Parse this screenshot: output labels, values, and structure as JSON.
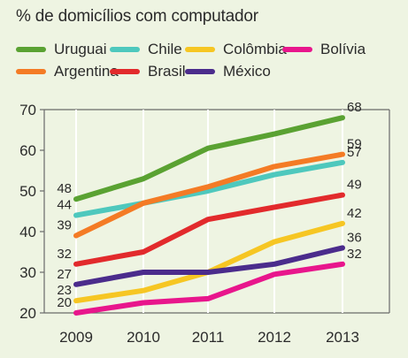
{
  "chart_data": {
    "type": "line",
    "title": "% de domicílios com computador",
    "xlabel": "",
    "ylabel": "",
    "x": [
      "2009",
      "2010",
      "2011",
      "2012",
      "2013"
    ],
    "ylim": [
      20,
      70
    ],
    "yticks": [
      20,
      30,
      40,
      50,
      60,
      70
    ],
    "grid": true,
    "legend_position": "top",
    "series": [
      {
        "name": "Uruguai",
        "color": "#5aa232",
        "values": [
          48,
          53,
          60.5,
          64,
          68
        ],
        "start_label": "48",
        "end_label": "68"
      },
      {
        "name": "Chile",
        "color": "#4ec8bd",
        "values": [
          44,
          47,
          50,
          54,
          57
        ],
        "start_label": "44",
        "end_label": "57"
      },
      {
        "name": "Colômbia",
        "color": "#f6c623",
        "values": [
          23,
          25.5,
          30,
          37.5,
          42
        ],
        "start_label": "23",
        "end_label": "42"
      },
      {
        "name": "Bolívia",
        "color": "#e8168c",
        "values": [
          20,
          22.5,
          23.5,
          29.5,
          32
        ],
        "start_label": "20",
        "end_label": "32"
      },
      {
        "name": "Argentina",
        "color": "#f47b25",
        "values": [
          39,
          47,
          51,
          56,
          59
        ],
        "start_label": "39",
        "end_label": "59"
      },
      {
        "name": "Brasil",
        "color": "#e22a2c",
        "values": [
          32,
          35,
          43,
          46,
          49
        ],
        "start_label": "32",
        "end_label": "49"
      },
      {
        "name": "México",
        "color": "#4b2c8c",
        "values": [
          27,
          30,
          30,
          32,
          36
        ],
        "start_label": "27",
        "end_label": "36"
      }
    ]
  }
}
